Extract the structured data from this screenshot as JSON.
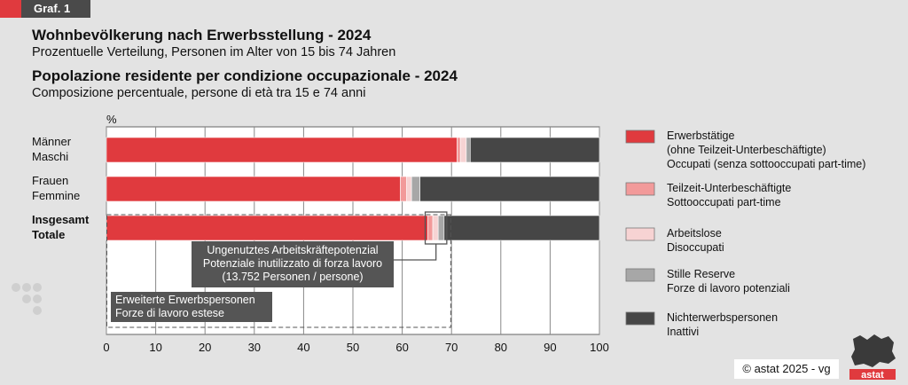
{
  "badge": "Graf. 1",
  "title_de": "Wohnbevölkerung nach Erwerbsstellung - 2024",
  "subtitle_de": "Prozentuelle Verteilung, Personen im Alter von 15 bis 74 Jahren",
  "title_it": "Popolazione residente per condizione occupazionale - 2024",
  "subtitle_it": "Composizione percentuale, persone di età tra 15 e 74 anni",
  "copyright": "©  astat 2025 - vg",
  "logo_text": "astat",
  "colors": {
    "employed": "#e03a3e",
    "underemployed": "#f29a9a",
    "unemployed": "#f7d3d3",
    "reserve": "#a7a7a7",
    "inactive": "#464646"
  },
  "chart_data": {
    "type": "bar",
    "orientation": "horizontal",
    "stacked": true,
    "unit_label": "%",
    "xlim": [
      0,
      100
    ],
    "x_ticks": [
      0,
      10,
      20,
      30,
      40,
      50,
      60,
      70,
      80,
      90,
      100
    ],
    "grid": true,
    "legend_position": "right",
    "categories": [
      {
        "line1": "Männer",
        "line2": "Maschi",
        "bold": false
      },
      {
        "line1": "Frauen",
        "line2": "Femmine",
        "bold": false
      },
      {
        "line1": "Insgesamt",
        "line2": "Totale",
        "bold": true
      }
    ],
    "series": [
      {
        "key": "employed",
        "legend": [
          "Erwerbstätige",
          "(ohne Teilzeit-Unterbeschäftigte)",
          "Occupati (senza sottooccupati part-time)"
        ],
        "values": [
          71.1,
          59.6,
          65.2
        ]
      },
      {
        "key": "underemployed",
        "legend": [
          "Teilzeit-Unterbeschäftigte",
          "Sottooccupati part-time"
        ],
        "values": [
          0.7,
          1.3,
          1.0
        ]
      },
      {
        "key": "unemployed",
        "legend": [
          "Arbeitslose",
          "Disoccupati"
        ],
        "values": [
          1.2,
          1.0,
          1.1
        ]
      },
      {
        "key": "reserve",
        "legend": [
          "Stille Reserve",
          "Forze di lavoro potenziali"
        ],
        "values": [
          0.8,
          1.7,
          1.2
        ]
      },
      {
        "key": "inactive",
        "legend": [
          "Nichterwerbspersonen",
          "Inattivi"
        ],
        "values": [
          26.2,
          36.4,
          31.5
        ]
      }
    ],
    "annotations": {
      "untapped": [
        "Ungenutztes Arbeitskräftepotenzial",
        "Potenziale inutilizzato di forza lavoro",
        "(13.752 Personen / persone)"
      ],
      "extended": [
        "Erweiterte Erwerbspersonen",
        "Forze di lavoro estese"
      ]
    }
  }
}
